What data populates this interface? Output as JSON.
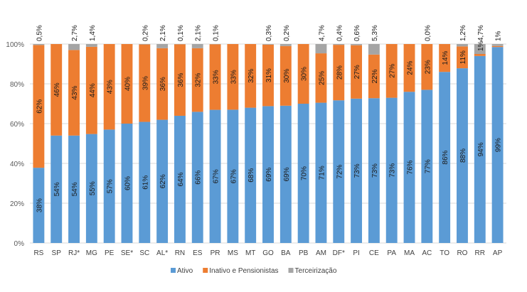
{
  "chart_data": {
    "type": "bar",
    "stacked": true,
    "title": "",
    "xlabel": "",
    "ylabel": "",
    "ylim": [
      0,
      100
    ],
    "y_ticks": [
      "0%",
      "20%",
      "40%",
      "60%",
      "80%",
      "100%"
    ],
    "y_tick_values": [
      0,
      20,
      40,
      60,
      80,
      100
    ],
    "grid": true,
    "legend_position": "bottom",
    "categories": [
      "RS",
      "SP",
      "RJ*",
      "MG",
      "PE",
      "SE*",
      "SC",
      "AL*",
      "RN",
      "ES",
      "PR",
      "MS",
      "MT",
      "GO",
      "BA",
      "PB",
      "AM",
      "DF*",
      "PI",
      "CE",
      "PA",
      "MA",
      "AC",
      "TO",
      "RO",
      "RR",
      "AP"
    ],
    "series": [
      {
        "name": "Ativo",
        "color": "#5b9bd5",
        "values": [
          38,
          54,
          54,
          55,
          57,
          60,
          61,
          62,
          64,
          66,
          67,
          67,
          68,
          69,
          69,
          70,
          71,
          72,
          73,
          73,
          73,
          76,
          77,
          86,
          88,
          94,
          99
        ],
        "labels": [
          "38%",
          "54%",
          "54%",
          "55%",
          "57%",
          "60%",
          "61%",
          "62%",
          "64%",
          "66%",
          "67%",
          "67%",
          "68%",
          "69%",
          "69%",
          "70%",
          "71%",
          "72%",
          "73%",
          "73%",
          "73%",
          "76%",
          "77%",
          "86%",
          "88%",
          "94%",
          "99%"
        ]
      },
      {
        "name": "Inativo e Pensionistas",
        "color": "#ed7d31",
        "values": [
          62,
          46,
          43,
          44,
          43,
          40,
          39,
          36,
          36,
          32,
          33,
          33,
          32,
          31,
          30,
          30,
          25,
          28,
          27,
          22,
          27,
          24,
          23,
          14,
          11,
          1,
          0.5
        ],
        "labels": [
          "62%",
          "46%",
          "43%",
          "44%",
          "43%",
          "40%",
          "39%",
          "36%",
          "36%",
          "32%",
          "33%",
          "33%",
          "32%",
          "31%",
          "30%",
          "30%",
          "25%",
          "28%",
          "27%",
          "22%",
          "27%",
          "24%",
          "23%",
          "14%",
          "11%",
          "1%",
          ""
        ]
      },
      {
        "name": "Terceirização",
        "color": "#a5a5a5",
        "values": [
          0.5,
          0,
          2.7,
          1.4,
          0,
          0,
          0.2,
          2.1,
          0.1,
          2.1,
          0.1,
          0,
          0,
          0.3,
          0.2,
          0,
          4.7,
          0.4,
          0.6,
          5.3,
          0,
          0,
          0,
          0,
          1.2,
          4.7,
          1
        ],
        "labels": [
          "0,5%",
          "",
          "2,7%",
          "1,4%",
          "",
          "",
          "0,2%",
          "2,1%",
          "0,1%",
          "2,1%",
          "0,1%",
          "",
          "",
          "0,3%",
          "0,2%",
          "",
          "4,7%",
          "0,4%",
          "0,6%",
          "5,3%",
          "",
          "",
          "0,0%",
          "",
          "1,2%",
          "4,7%",
          "1%"
        ]
      }
    ]
  }
}
